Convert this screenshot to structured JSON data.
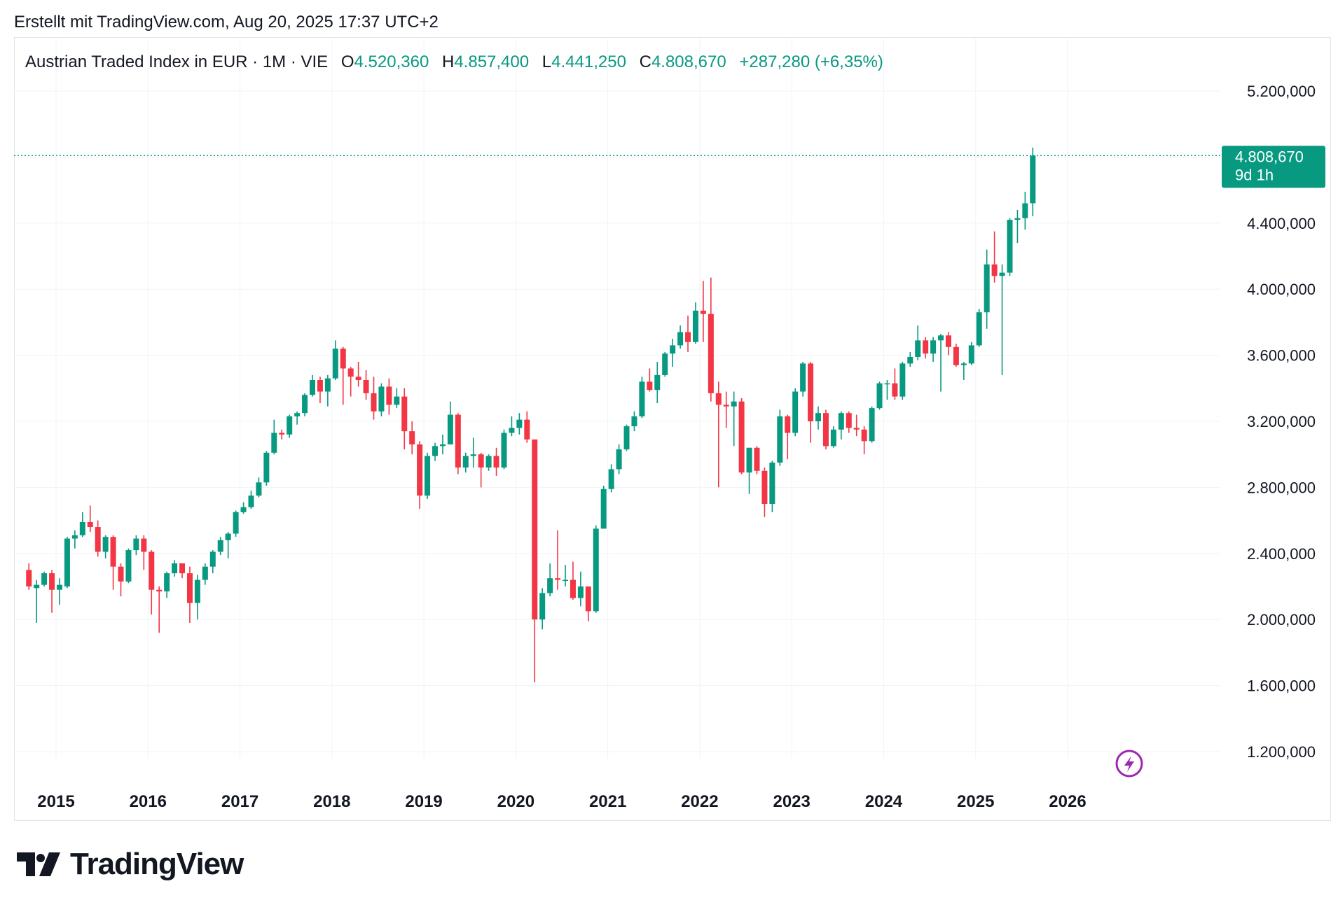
{
  "header": {
    "created_text": "Erstellt mit TradingView.com, Aug 20, 2025 17:37 UTC+2"
  },
  "legend": {
    "symbol": "Austrian Traded Index in EUR · 1M · VIE",
    "o_label": "O",
    "o_value": "4.520,360",
    "h_label": "H",
    "h_value": "4.857,400",
    "l_label": "L",
    "l_value": "4.441,250",
    "c_label": "C",
    "c_value": "4.808,670",
    "change": "+287,280 (+6,35%)"
  },
  "price_tag": {
    "price": "4.808,670",
    "countdown": "9d 1h"
  },
  "footer": {
    "brand": "TradingView"
  },
  "colors": {
    "up": "#089981",
    "down": "#f23645",
    "grid": "#f0f3fa",
    "text": "#131722",
    "alert": "#9c27b0"
  },
  "chart_data": {
    "type": "candlestick",
    "interval": "1M",
    "y_axis_ticks": [
      "5.200,000",
      "4.400,000",
      "4.000,000",
      "3.600,000",
      "3.200,000",
      "2.800,000",
      "2.400,000",
      "2.000,000",
      "1.600,000",
      "1.200,000"
    ],
    "y_axis_tick_values": [
      5200,
      4400,
      4000,
      3600,
      3200,
      2800,
      2400,
      2000,
      1600,
      1200
    ],
    "x_axis_ticks": [
      "2015",
      "2016",
      "2017",
      "2018",
      "2019",
      "2020",
      "2021",
      "2022",
      "2023",
      "2024",
      "2025",
      "2026"
    ],
    "ylim": [
      1000,
      5350
    ],
    "last_price": 4808.67,
    "candles": [
      {
        "t": "2014-09",
        "o": 2300,
        "h": 2340,
        "l": 2180,
        "c": 2200
      },
      {
        "t": "2014-10",
        "o": 2190,
        "h": 2240,
        "l": 1980,
        "c": 2210
      },
      {
        "t": "2014-11",
        "o": 2210,
        "h": 2290,
        "l": 2200,
        "c": 2280
      },
      {
        "t": "2014-12",
        "o": 2280,
        "h": 2300,
        "l": 2040,
        "c": 2180
      },
      {
        "t": "2015-01",
        "o": 2180,
        "h": 2250,
        "l": 2090,
        "c": 2210
      },
      {
        "t": "2015-02",
        "o": 2200,
        "h": 2500,
        "l": 2190,
        "c": 2490
      },
      {
        "t": "2015-03",
        "o": 2490,
        "h": 2540,
        "l": 2430,
        "c": 2510
      },
      {
        "t": "2015-04",
        "o": 2510,
        "h": 2650,
        "l": 2500,
        "c": 2590
      },
      {
        "t": "2015-05",
        "o": 2590,
        "h": 2690,
        "l": 2530,
        "c": 2560
      },
      {
        "t": "2015-06",
        "o": 2560,
        "h": 2600,
        "l": 2380,
        "c": 2410
      },
      {
        "t": "2015-07",
        "o": 2410,
        "h": 2510,
        "l": 2370,
        "c": 2500
      },
      {
        "t": "2015-08",
        "o": 2500,
        "h": 2510,
        "l": 2180,
        "c": 2320
      },
      {
        "t": "2015-09",
        "o": 2320,
        "h": 2340,
        "l": 2140,
        "c": 2230
      },
      {
        "t": "2015-10",
        "o": 2230,
        "h": 2430,
        "l": 2220,
        "c": 2420
      },
      {
        "t": "2015-11",
        "o": 2420,
        "h": 2510,
        "l": 2390,
        "c": 2490
      },
      {
        "t": "2015-12",
        "o": 2490,
        "h": 2510,
        "l": 2300,
        "c": 2410
      },
      {
        "t": "2016-01",
        "o": 2410,
        "h": 2420,
        "l": 2030,
        "c": 2180
      },
      {
        "t": "2016-02",
        "o": 2180,
        "h": 2200,
        "l": 1920,
        "c": 2170
      },
      {
        "t": "2016-03",
        "o": 2170,
        "h": 2290,
        "l": 2130,
        "c": 2280
      },
      {
        "t": "2016-04",
        "o": 2280,
        "h": 2360,
        "l": 2260,
        "c": 2340
      },
      {
        "t": "2016-05",
        "o": 2340,
        "h": 2340,
        "l": 2250,
        "c": 2280
      },
      {
        "t": "2016-06",
        "o": 2280,
        "h": 2320,
        "l": 1980,
        "c": 2100
      },
      {
        "t": "2016-07",
        "o": 2100,
        "h": 2270,
        "l": 2000,
        "c": 2240
      },
      {
        "t": "2016-08",
        "o": 2240,
        "h": 2340,
        "l": 2210,
        "c": 2320
      },
      {
        "t": "2016-09",
        "o": 2320,
        "h": 2420,
        "l": 2280,
        "c": 2410
      },
      {
        "t": "2016-10",
        "o": 2410,
        "h": 2500,
        "l": 2390,
        "c": 2480
      },
      {
        "t": "2016-11",
        "o": 2480,
        "h": 2530,
        "l": 2370,
        "c": 2520
      },
      {
        "t": "2016-12",
        "o": 2520,
        "h": 2660,
        "l": 2500,
        "c": 2650
      },
      {
        "t": "2017-01",
        "o": 2650,
        "h": 2710,
        "l": 2640,
        "c": 2680
      },
      {
        "t": "2017-02",
        "o": 2680,
        "h": 2780,
        "l": 2670,
        "c": 2750
      },
      {
        "t": "2017-03",
        "o": 2750,
        "h": 2860,
        "l": 2740,
        "c": 2830
      },
      {
        "t": "2017-04",
        "o": 2830,
        "h": 3020,
        "l": 2810,
        "c": 3010
      },
      {
        "t": "2017-05",
        "o": 3010,
        "h": 3210,
        "l": 3000,
        "c": 3130
      },
      {
        "t": "2017-06",
        "o": 3130,
        "h": 3150,
        "l": 3090,
        "c": 3120
      },
      {
        "t": "2017-07",
        "o": 3120,
        "h": 3240,
        "l": 3100,
        "c": 3230
      },
      {
        "t": "2017-08",
        "o": 3230,
        "h": 3260,
        "l": 3180,
        "c": 3250
      },
      {
        "t": "2017-09",
        "o": 3250,
        "h": 3370,
        "l": 3230,
        "c": 3360
      },
      {
        "t": "2017-10",
        "o": 3360,
        "h": 3480,
        "l": 3350,
        "c": 3450
      },
      {
        "t": "2017-11",
        "o": 3450,
        "h": 3470,
        "l": 3310,
        "c": 3380
      },
      {
        "t": "2017-12",
        "o": 3380,
        "h": 3480,
        "l": 3290,
        "c": 3460
      },
      {
        "t": "2018-01",
        "o": 3460,
        "h": 3690,
        "l": 3450,
        "c": 3640
      },
      {
        "t": "2018-02",
        "o": 3640,
        "h": 3650,
        "l": 3300,
        "c": 3520
      },
      {
        "t": "2018-03",
        "o": 3520,
        "h": 3530,
        "l": 3350,
        "c": 3470
      },
      {
        "t": "2018-04",
        "o": 3470,
        "h": 3560,
        "l": 3410,
        "c": 3450
      },
      {
        "t": "2018-05",
        "o": 3450,
        "h": 3510,
        "l": 3330,
        "c": 3370
      },
      {
        "t": "2018-06",
        "o": 3370,
        "h": 3470,
        "l": 3210,
        "c": 3260
      },
      {
        "t": "2018-07",
        "o": 3260,
        "h": 3430,
        "l": 3230,
        "c": 3410
      },
      {
        "t": "2018-08",
        "o": 3410,
        "h": 3460,
        "l": 3240,
        "c": 3300
      },
      {
        "t": "2018-09",
        "o": 3300,
        "h": 3400,
        "l": 3280,
        "c": 3350
      },
      {
        "t": "2018-10",
        "o": 3350,
        "h": 3400,
        "l": 3030,
        "c": 3140
      },
      {
        "t": "2018-11",
        "o": 3140,
        "h": 3200,
        "l": 3000,
        "c": 3060
      },
      {
        "t": "2018-12",
        "o": 3060,
        "h": 3080,
        "l": 2670,
        "c": 2750
      },
      {
        "t": "2019-01",
        "o": 2750,
        "h": 3010,
        "l": 2730,
        "c": 2990
      },
      {
        "t": "2019-02",
        "o": 2990,
        "h": 3070,
        "l": 2960,
        "c": 3050
      },
      {
        "t": "2019-03",
        "o": 3050,
        "h": 3120,
        "l": 3000,
        "c": 3060
      },
      {
        "t": "2019-04",
        "o": 3060,
        "h": 3320,
        "l": 3060,
        "c": 3240
      },
      {
        "t": "2019-05",
        "o": 3240,
        "h": 3250,
        "l": 2880,
        "c": 2920
      },
      {
        "t": "2019-06",
        "o": 2920,
        "h": 3010,
        "l": 2890,
        "c": 2990
      },
      {
        "t": "2019-07",
        "o": 2990,
        "h": 3100,
        "l": 2920,
        "c": 3000
      },
      {
        "t": "2019-08",
        "o": 3000,
        "h": 3010,
        "l": 2800,
        "c": 2920
      },
      {
        "t": "2019-09",
        "o": 2920,
        "h": 3000,
        "l": 2900,
        "c": 2990
      },
      {
        "t": "2019-10",
        "o": 2990,
        "h": 3040,
        "l": 2870,
        "c": 2920
      },
      {
        "t": "2019-11",
        "o": 2920,
        "h": 3150,
        "l": 2910,
        "c": 3130
      },
      {
        "t": "2019-12",
        "o": 3130,
        "h": 3230,
        "l": 3110,
        "c": 3160
      },
      {
        "t": "2020-01",
        "o": 3160,
        "h": 3250,
        "l": 3120,
        "c": 3210
      },
      {
        "t": "2020-02",
        "o": 3210,
        "h": 3260,
        "l": 3070,
        "c": 3090
      },
      {
        "t": "2020-03",
        "o": 3090,
        "h": 3090,
        "l": 1620,
        "c": 2000
      },
      {
        "t": "2020-04",
        "o": 2000,
        "h": 2190,
        "l": 1940,
        "c": 2160
      },
      {
        "t": "2020-05",
        "o": 2160,
        "h": 2340,
        "l": 2140,
        "c": 2250
      },
      {
        "t": "2020-06",
        "o": 2250,
        "h": 2540,
        "l": 2180,
        "c": 2240
      },
      {
        "t": "2020-07",
        "o": 2240,
        "h": 2330,
        "l": 2200,
        "c": 2240
      },
      {
        "t": "2020-08",
        "o": 2240,
        "h": 2350,
        "l": 2120,
        "c": 2130
      },
      {
        "t": "2020-09",
        "o": 2130,
        "h": 2290,
        "l": 2080,
        "c": 2200
      },
      {
        "t": "2020-10",
        "o": 2200,
        "h": 2200,
        "l": 1990,
        "c": 2050
      },
      {
        "t": "2020-11",
        "o": 2050,
        "h": 2570,
        "l": 2040,
        "c": 2550
      },
      {
        "t": "2020-12",
        "o": 2550,
        "h": 2810,
        "l": 2550,
        "c": 2790
      },
      {
        "t": "2021-01",
        "o": 2790,
        "h": 2940,
        "l": 2770,
        "c": 2910
      },
      {
        "t": "2021-02",
        "o": 2910,
        "h": 3060,
        "l": 2880,
        "c": 3030
      },
      {
        "t": "2021-03",
        "o": 3030,
        "h": 3180,
        "l": 3020,
        "c": 3170
      },
      {
        "t": "2021-04",
        "o": 3170,
        "h": 3260,
        "l": 3140,
        "c": 3230
      },
      {
        "t": "2021-05",
        "o": 3230,
        "h": 3470,
        "l": 3220,
        "c": 3440
      },
      {
        "t": "2021-06",
        "o": 3440,
        "h": 3520,
        "l": 3380,
        "c": 3390
      },
      {
        "t": "2021-07",
        "o": 3390,
        "h": 3560,
        "l": 3310,
        "c": 3480
      },
      {
        "t": "2021-08",
        "o": 3480,
        "h": 3620,
        "l": 3470,
        "c": 3610
      },
      {
        "t": "2021-09",
        "o": 3610,
        "h": 3700,
        "l": 3530,
        "c": 3660
      },
      {
        "t": "2021-10",
        "o": 3660,
        "h": 3780,
        "l": 3640,
        "c": 3740
      },
      {
        "t": "2021-11",
        "o": 3740,
        "h": 3840,
        "l": 3620,
        "c": 3680
      },
      {
        "t": "2021-12",
        "o": 3680,
        "h": 3920,
        "l": 3670,
        "c": 3870
      },
      {
        "t": "2022-01",
        "o": 3870,
        "h": 4050,
        "l": 3680,
        "c": 3850
      },
      {
        "t": "2022-02",
        "o": 3850,
        "h": 4070,
        "l": 3320,
        "c": 3370
      },
      {
        "t": "2022-03",
        "o": 3370,
        "h": 3440,
        "l": 2800,
        "c": 3300
      },
      {
        "t": "2022-04",
        "o": 3300,
        "h": 3380,
        "l": 3160,
        "c": 3290
      },
      {
        "t": "2022-05",
        "o": 3290,
        "h": 3380,
        "l": 3050,
        "c": 3320
      },
      {
        "t": "2022-06",
        "o": 3320,
        "h": 3340,
        "l": 2880,
        "c": 2890
      },
      {
        "t": "2022-07",
        "o": 2890,
        "h": 3040,
        "l": 2760,
        "c": 3040
      },
      {
        "t": "2022-08",
        "o": 3040,
        "h": 3050,
        "l": 2880,
        "c": 2900
      },
      {
        "t": "2022-09",
        "o": 2900,
        "h": 2920,
        "l": 2620,
        "c": 2700
      },
      {
        "t": "2022-10",
        "o": 2700,
        "h": 2960,
        "l": 2650,
        "c": 2950
      },
      {
        "t": "2022-11",
        "o": 2950,
        "h": 3270,
        "l": 2930,
        "c": 3230
      },
      {
        "t": "2022-12",
        "o": 3230,
        "h": 3240,
        "l": 2970,
        "c": 3130
      },
      {
        "t": "2023-01",
        "o": 3130,
        "h": 3400,
        "l": 3110,
        "c": 3380
      },
      {
        "t": "2023-02",
        "o": 3380,
        "h": 3560,
        "l": 3350,
        "c": 3550
      },
      {
        "t": "2023-03",
        "o": 3550,
        "h": 3560,
        "l": 3070,
        "c": 3200
      },
      {
        "t": "2023-04",
        "o": 3200,
        "h": 3290,
        "l": 3150,
        "c": 3250
      },
      {
        "t": "2023-05",
        "o": 3250,
        "h": 3270,
        "l": 3030,
        "c": 3050
      },
      {
        "t": "2023-06",
        "o": 3050,
        "h": 3170,
        "l": 3040,
        "c": 3150
      },
      {
        "t": "2023-07",
        "o": 3150,
        "h": 3260,
        "l": 3090,
        "c": 3250
      },
      {
        "t": "2023-08",
        "o": 3250,
        "h": 3260,
        "l": 3130,
        "c": 3160
      },
      {
        "t": "2023-09",
        "o": 3160,
        "h": 3240,
        "l": 3110,
        "c": 3150
      },
      {
        "t": "2023-10",
        "o": 3150,
        "h": 3170,
        "l": 3000,
        "c": 3080
      },
      {
        "t": "2023-11",
        "o": 3080,
        "h": 3290,
        "l": 3070,
        "c": 3280
      },
      {
        "t": "2023-12",
        "o": 3280,
        "h": 3440,
        "l": 3270,
        "c": 3430
      },
      {
        "t": "2024-01",
        "o": 3430,
        "h": 3450,
        "l": 3330,
        "c": 3430
      },
      {
        "t": "2024-02",
        "o": 3430,
        "h": 3520,
        "l": 3330,
        "c": 3350
      },
      {
        "t": "2024-03",
        "o": 3350,
        "h": 3560,
        "l": 3330,
        "c": 3550
      },
      {
        "t": "2024-04",
        "o": 3550,
        "h": 3620,
        "l": 3530,
        "c": 3590
      },
      {
        "t": "2024-05",
        "o": 3590,
        "h": 3780,
        "l": 3570,
        "c": 3690
      },
      {
        "t": "2024-06",
        "o": 3690,
        "h": 3710,
        "l": 3580,
        "c": 3610
      },
      {
        "t": "2024-07",
        "o": 3610,
        "h": 3710,
        "l": 3560,
        "c": 3690
      },
      {
        "t": "2024-08",
        "o": 3690,
        "h": 3730,
        "l": 3380,
        "c": 3720
      },
      {
        "t": "2024-09",
        "o": 3720,
        "h": 3740,
        "l": 3600,
        "c": 3650
      },
      {
        "t": "2024-10",
        "o": 3650,
        "h": 3670,
        "l": 3530,
        "c": 3540
      },
      {
        "t": "2024-11",
        "o": 3540,
        "h": 3560,
        "l": 3450,
        "c": 3550
      },
      {
        "t": "2024-12",
        "o": 3550,
        "h": 3680,
        "l": 3540,
        "c": 3660
      },
      {
        "t": "2025-01",
        "o": 3660,
        "h": 3880,
        "l": 3650,
        "c": 3860
      },
      {
        "t": "2025-02",
        "o": 3860,
        "h": 4240,
        "l": 3760,
        "c": 4150
      },
      {
        "t": "2025-03",
        "o": 4150,
        "h": 4350,
        "l": 4040,
        "c": 4080
      },
      {
        "t": "2025-04",
        "o": 4080,
        "h": 4150,
        "l": 3480,
        "c": 4100
      },
      {
        "t": "2025-05",
        "o": 4100,
        "h": 4430,
        "l": 4080,
        "c": 4420
      },
      {
        "t": "2025-06",
        "o": 4420,
        "h": 4480,
        "l": 4280,
        "c": 4430
      },
      {
        "t": "2025-07",
        "o": 4430,
        "h": 4590,
        "l": 4360,
        "c": 4520
      },
      {
        "t": "2025-08",
        "o": 4520.36,
        "h": 4857.4,
        "l": 4441.25,
        "c": 4808.67
      }
    ]
  }
}
